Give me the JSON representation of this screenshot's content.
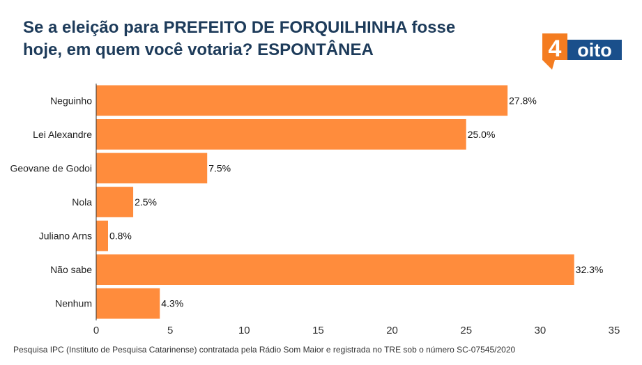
{
  "title_line1": "Se a eleição para PREFEITO DE FORQUILHINHA fosse",
  "title_line2": "hoje, em quem você votaria? ESPONTÂNEA",
  "logo": {
    "digit": "4",
    "text": "oito",
    "orange": "#f47c20",
    "blue": "#1a4f8b"
  },
  "footnote": "Pesquisa IPC (Instituto de Pesquisa Catarinense) contratada pela Rádio Som Maior e registrada no TRE sob o número SC-07545/2020",
  "colors": {
    "bar": "#ff8c3c",
    "title": "#1d3b5a"
  },
  "chart_data": {
    "type": "bar",
    "orientation": "horizontal",
    "categories": [
      "Neguinho",
      "Lei Alexandre",
      "Geovane de Godoi",
      "Nola",
      "Juliano Arns",
      "Não sabe",
      "Nenhum"
    ],
    "values": [
      27.8,
      25.0,
      7.5,
      2.5,
      0.8,
      32.3,
      4.3
    ],
    "value_labels": [
      "27.8%",
      "25.0%",
      "7.5%",
      "2.5%",
      "0.8%",
      "32.3%",
      "4.3%"
    ],
    "xlim": [
      0,
      35
    ],
    "xticks": [
      0,
      5,
      10,
      15,
      20,
      25,
      30,
      35
    ],
    "grid": false,
    "legend": "none"
  }
}
